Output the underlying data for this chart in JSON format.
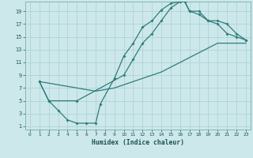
{
  "xlabel": "Humidex (Indice chaleur)",
  "bg_color": "#cde8ea",
  "grid_color": "#aacfd2",
  "line_color": "#2e7d7d",
  "xlim": [
    -0.5,
    23.5
  ],
  "ylim": [
    0.5,
    20.5
  ],
  "xticks": [
    0,
    1,
    2,
    3,
    4,
    5,
    6,
    7,
    8,
    9,
    10,
    11,
    12,
    13,
    14,
    15,
    16,
    17,
    18,
    19,
    20,
    21,
    22,
    23
  ],
  "yticks": [
    1,
    3,
    5,
    7,
    9,
    11,
    13,
    15,
    17,
    19
  ],
  "curve1_x": [
    1,
    2,
    3,
    4,
    5,
    6,
    7,
    7.5,
    9,
    10,
    11,
    12,
    13,
    14,
    15,
    16,
    16.5,
    17,
    18,
    19,
    20,
    21,
    22,
    23
  ],
  "curve1_y": [
    8,
    5,
    3.5,
    2,
    1.5,
    1.5,
    1.5,
    4.5,
    8.5,
    12,
    14,
    16.5,
    17.5,
    19.2,
    20.2,
    20.5,
    20.5,
    19,
    18.5,
    17.5,
    17.5,
    17,
    15.5,
    14.5
  ],
  "curve2_x": [
    1,
    2,
    5,
    10,
    11,
    12,
    13,
    14,
    15,
    16,
    16.5,
    17,
    18,
    19,
    20,
    21,
    22,
    23
  ],
  "curve2_y": [
    8,
    5,
    5,
    9,
    11.5,
    14,
    15.5,
    17.5,
    19.5,
    20.5,
    20.5,
    19,
    19,
    17.5,
    17,
    15.5,
    15,
    14.5
  ],
  "curve3_x": [
    1,
    5,
    7,
    9,
    10,
    12,
    14,
    16,
    18,
    20,
    22,
    23
  ],
  "curve3_y": [
    8,
    7,
    6.5,
    7,
    7.5,
    8.5,
    9.5,
    11,
    12.5,
    14,
    14,
    14
  ]
}
